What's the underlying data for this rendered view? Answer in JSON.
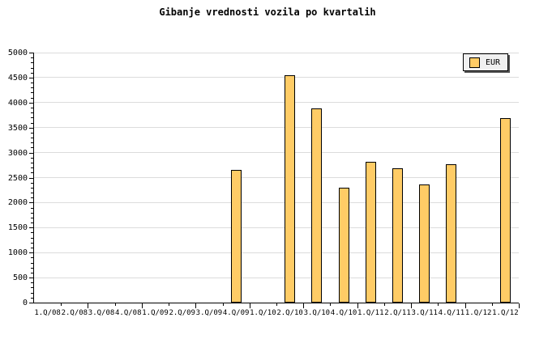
{
  "chart_data": {
    "type": "bar",
    "title": "Gibanje vrednosti vozila po kvartalih",
    "categories": [
      "1.Q/08",
      "2.Q/08",
      "3.Q/08",
      "4.Q/08",
      "1.Q/09",
      "2.Q/09",
      "3.Q/09",
      "4.Q/09",
      "1.Q/10",
      "2.Q/10",
      "3.Q/10",
      "4.Q/10",
      "1.Q/11",
      "2.Q/11",
      "3.Q/11",
      "4.Q/11",
      "1.Q/12",
      "1.Q/12"
    ],
    "series": [
      {
        "name": "EUR",
        "values": [
          null,
          null,
          null,
          null,
          null,
          null,
          null,
          2650,
          null,
          4550,
          3890,
          2290,
          2820,
          2690,
          2360,
          2760,
          null,
          3690
        ]
      }
    ],
    "xlabel": "",
    "ylabel": "",
    "ylim": [
      0,
      5000
    ],
    "ytick_step": 500,
    "y_minor_step": 100,
    "grid": "horizontal-major",
    "legend_position": "top-right",
    "colors": {
      "bar_fill": "#FFCC66",
      "bar_border": "#000000",
      "grid": "#DCDCDC",
      "axis": "#000000",
      "legend_bg": "#F0F0F0",
      "legend_shadow": "#555555",
      "background": "#FFFFFF",
      "text": "#000000"
    }
  }
}
